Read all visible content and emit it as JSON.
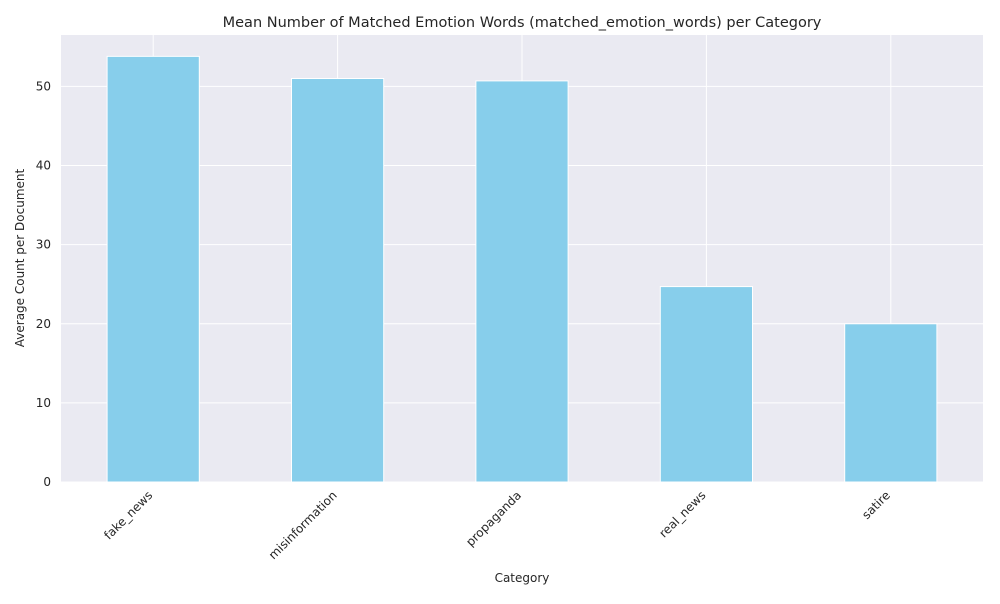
{
  "chart_data": {
    "type": "bar",
    "title": "Mean Number of Matched Emotion Words (matched_emotion_words) per Category",
    "xlabel": "Category",
    "ylabel": "Average Count per Document",
    "categories": [
      "fake_news",
      "misinformation",
      "propaganda",
      "real_news",
      "satire"
    ],
    "values": [
      53.8,
      51.0,
      50.7,
      24.7,
      20.0
    ],
    "ylim": [
      0,
      56.5
    ],
    "yticks": [
      0,
      10,
      20,
      30,
      40,
      50
    ],
    "grid": true,
    "legend": "none",
    "colors": {
      "bar": "#87ceeb",
      "plot_background": "#eaeaf2",
      "grid": "#ffffff"
    }
  }
}
